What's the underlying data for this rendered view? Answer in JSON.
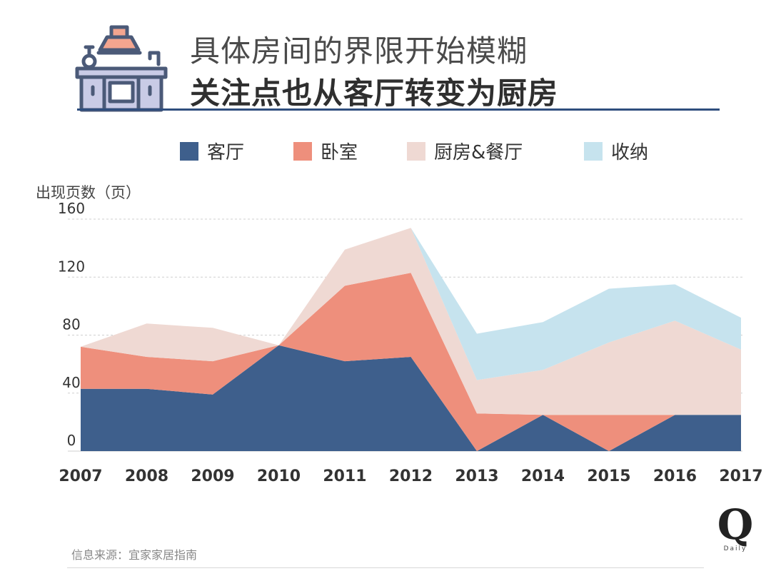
{
  "header": {
    "title_line1": "具体房间的界限开始模糊",
    "title_line2": "关注点也从客厅转变为厨房"
  },
  "legend": [
    {
      "label": "客厅",
      "color": "#3e5f8c"
    },
    {
      "label": "卧室",
      "color": "#ee8f7c"
    },
    {
      "label": "厨房&餐厅",
      "color": "#efd9d3"
    },
    {
      "label": "收纳",
      "color": "#c6e3ee"
    }
  ],
  "footer": {
    "source": "信息来源：宜家家居指南",
    "logo_letter": "Q",
    "logo_sub": "Daily"
  },
  "chart_data": {
    "type": "area",
    "stacked": true,
    "ylabel": "出现页数（页）",
    "xlabel": "",
    "ylim": [
      0,
      160
    ],
    "yticks": [
      0,
      40,
      80,
      120,
      160
    ],
    "grid": true,
    "legend_position": "top",
    "x": [
      "2007",
      "2008",
      "2009",
      "2010",
      "2011",
      "2012",
      "2013",
      "2014",
      "2015",
      "2016",
      "2017"
    ],
    "series": [
      {
        "name": "客厅",
        "color": "#3e5f8c",
        "values": [
          43,
          43,
          39,
          73,
          62,
          65,
          0,
          25,
          0,
          25,
          25
        ]
      },
      {
        "name": "卧室",
        "color": "#ee8f7c",
        "values": [
          29,
          22,
          23,
          0,
          52,
          58,
          26,
          0,
          25,
          0,
          0
        ]
      },
      {
        "name": "厨房&餐厅",
        "color": "#efd9d3",
        "values": [
          0,
          23,
          23,
          0,
          25,
          31,
          23,
          31,
          50,
          65,
          45
        ]
      },
      {
        "name": "收纳",
        "color": "#c6e3ee",
        "values": [
          0,
          0,
          0,
          0,
          0,
          0,
          32,
          33,
          37,
          25,
          22
        ]
      }
    ]
  }
}
